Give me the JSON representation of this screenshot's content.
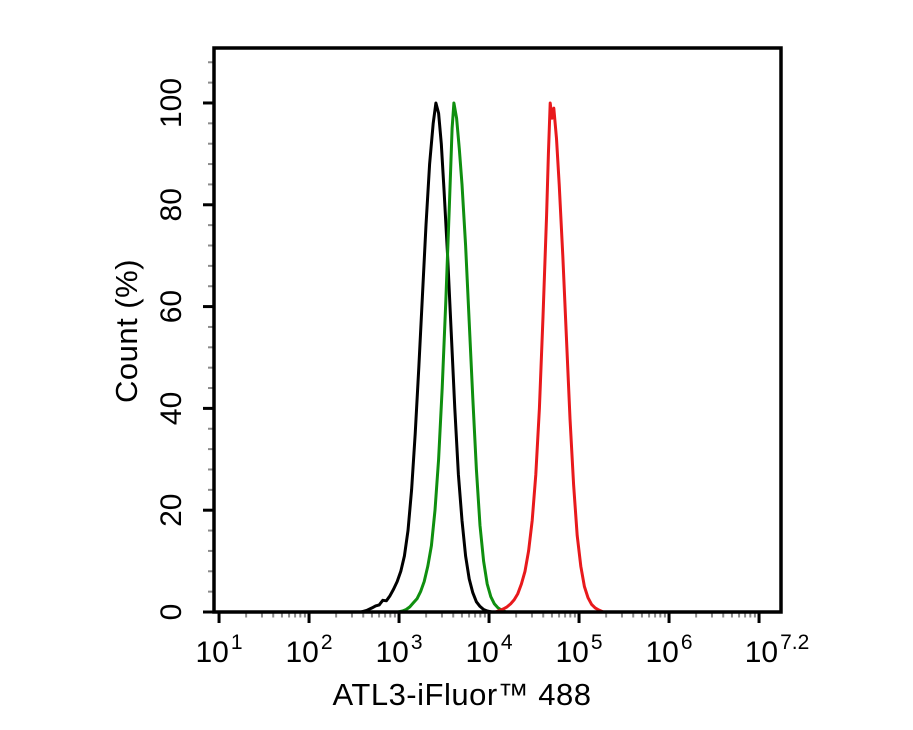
{
  "figure": {
    "background": "#ffffff",
    "plot_border_color": "#000000",
    "major_tick_color": "#000000",
    "minor_tick_color": "#8c8c8c"
  },
  "chart_data": {
    "type": "line",
    "subtype": "flow-cytometry-histogram-overlay",
    "title": "",
    "xlabel": "ATL3-iFluor™ 488",
    "ylabel": "Count (%)",
    "x_scale": "log10",
    "x_range_log10": [
      0.944,
      7.244
    ],
    "ylim": [
      0,
      110.8
    ],
    "grid": false,
    "legend": "none",
    "x_major_ticks": [
      {
        "log10": 1,
        "mantissa": "10",
        "exponent": "1",
        "draw_tick": true
      },
      {
        "log10": 2,
        "mantissa": "10",
        "exponent": "2",
        "draw_tick": true
      },
      {
        "log10": 3,
        "mantissa": "10",
        "exponent": "3",
        "draw_tick": true
      },
      {
        "log10": 4,
        "mantissa": "10",
        "exponent": "4",
        "draw_tick": true
      },
      {
        "log10": 5,
        "mantissa": "10",
        "exponent": "5",
        "draw_tick": true
      },
      {
        "log10": 6,
        "mantissa": "10",
        "exponent": "6",
        "draw_tick": true
      },
      {
        "log10": 7,
        "mantissa": "",
        "exponent": "",
        "draw_tick": true
      },
      {
        "log10": 7.2,
        "mantissa": "10",
        "exponent": "7.2",
        "draw_tick": false
      }
    ],
    "y_major_ticks": [
      0,
      20,
      40,
      60,
      80,
      100
    ],
    "y_minor_tick_step": 4,
    "series": [
      {
        "name": "black-histogram",
        "color": "#000000",
        "peak_log10x": 3.41,
        "peak_x_approx": 2570,
        "peak_percent": 100,
        "points": [
          [
            2.58,
            0
          ],
          [
            2.64,
            0.3
          ],
          [
            2.7,
            0.8
          ],
          [
            2.74,
            1.2
          ],
          [
            2.78,
            1.4
          ],
          [
            2.82,
            2.3
          ],
          [
            2.86,
            2.2
          ],
          [
            2.9,
            3.2
          ],
          [
            2.94,
            4.5
          ],
          [
            2.98,
            6
          ],
          [
            3.02,
            8
          ],
          [
            3.06,
            11
          ],
          [
            3.1,
            16
          ],
          [
            3.14,
            24
          ],
          [
            3.18,
            35
          ],
          [
            3.22,
            48
          ],
          [
            3.26,
            62
          ],
          [
            3.3,
            76
          ],
          [
            3.34,
            88
          ],
          [
            3.38,
            96
          ],
          [
            3.41,
            100
          ],
          [
            3.44,
            98
          ],
          [
            3.47,
            92
          ],
          [
            3.5,
            83
          ],
          [
            3.54,
            70
          ],
          [
            3.58,
            55
          ],
          [
            3.62,
            40
          ],
          [
            3.66,
            27
          ],
          [
            3.7,
            18
          ],
          [
            3.74,
            11
          ],
          [
            3.78,
            6.5
          ],
          [
            3.82,
            3.8
          ],
          [
            3.86,
            2.0
          ],
          [
            3.9,
            1.1
          ],
          [
            3.94,
            0.5
          ],
          [
            3.98,
            0.2
          ],
          [
            4.03,
            0
          ]
        ]
      },
      {
        "name": "green-histogram",
        "color": "#0f8f0f",
        "peak_log10x": 3.61,
        "peak_x_approx": 4070,
        "peak_percent": 100,
        "points": [
          [
            2.99,
            0
          ],
          [
            3.04,
            0.2
          ],
          [
            3.08,
            0.5
          ],
          [
            3.12,
            1.0
          ],
          [
            3.16,
            1.8
          ],
          [
            3.2,
            2.6
          ],
          [
            3.24,
            4.0
          ],
          [
            3.28,
            6.0
          ],
          [
            3.32,
            9.0
          ],
          [
            3.36,
            13
          ],
          [
            3.4,
            20
          ],
          [
            3.44,
            30
          ],
          [
            3.48,
            44
          ],
          [
            3.52,
            61
          ],
          [
            3.56,
            80
          ],
          [
            3.59,
            95
          ],
          [
            3.61,
            100
          ],
          [
            3.64,
            97
          ],
          [
            3.67,
            91
          ],
          [
            3.7,
            84
          ],
          [
            3.74,
            72
          ],
          [
            3.78,
            57
          ],
          [
            3.82,
            42
          ],
          [
            3.86,
            28
          ],
          [
            3.9,
            17
          ],
          [
            3.94,
            10
          ],
          [
            3.98,
            5.5
          ],
          [
            4.02,
            3.0
          ],
          [
            4.06,
            1.6
          ],
          [
            4.1,
            0.8
          ],
          [
            4.14,
            0.35
          ],
          [
            4.19,
            0
          ]
        ]
      },
      {
        "name": "red-histogram",
        "color": "#e8191c",
        "peak_log10x": 4.68,
        "peak_x_approx": 47900,
        "peak_percent": 100,
        "points": [
          [
            4.07,
            0
          ],
          [
            4.12,
            0.3
          ],
          [
            4.16,
            0.6
          ],
          [
            4.2,
            1.0
          ],
          [
            4.24,
            1.6
          ],
          [
            4.28,
            2.4
          ],
          [
            4.32,
            3.6
          ],
          [
            4.36,
            5.5
          ],
          [
            4.4,
            8.0
          ],
          [
            4.44,
            12
          ],
          [
            4.48,
            18
          ],
          [
            4.52,
            27
          ],
          [
            4.56,
            40
          ],
          [
            4.6,
            58
          ],
          [
            4.64,
            78
          ],
          [
            4.66,
            90
          ],
          [
            4.68,
            100
          ],
          [
            4.7,
            97
          ],
          [
            4.72,
            99
          ],
          [
            4.75,
            93
          ],
          [
            4.78,
            84
          ],
          [
            4.82,
            70
          ],
          [
            4.86,
            54
          ],
          [
            4.9,
            38
          ],
          [
            4.94,
            25
          ],
          [
            4.98,
            15
          ],
          [
            5.02,
            9.0
          ],
          [
            5.06,
            5.0
          ],
          [
            5.1,
            2.8
          ],
          [
            5.14,
            1.5
          ],
          [
            5.18,
            0.8
          ],
          [
            5.22,
            0.4
          ],
          [
            5.27,
            0
          ]
        ]
      }
    ]
  }
}
